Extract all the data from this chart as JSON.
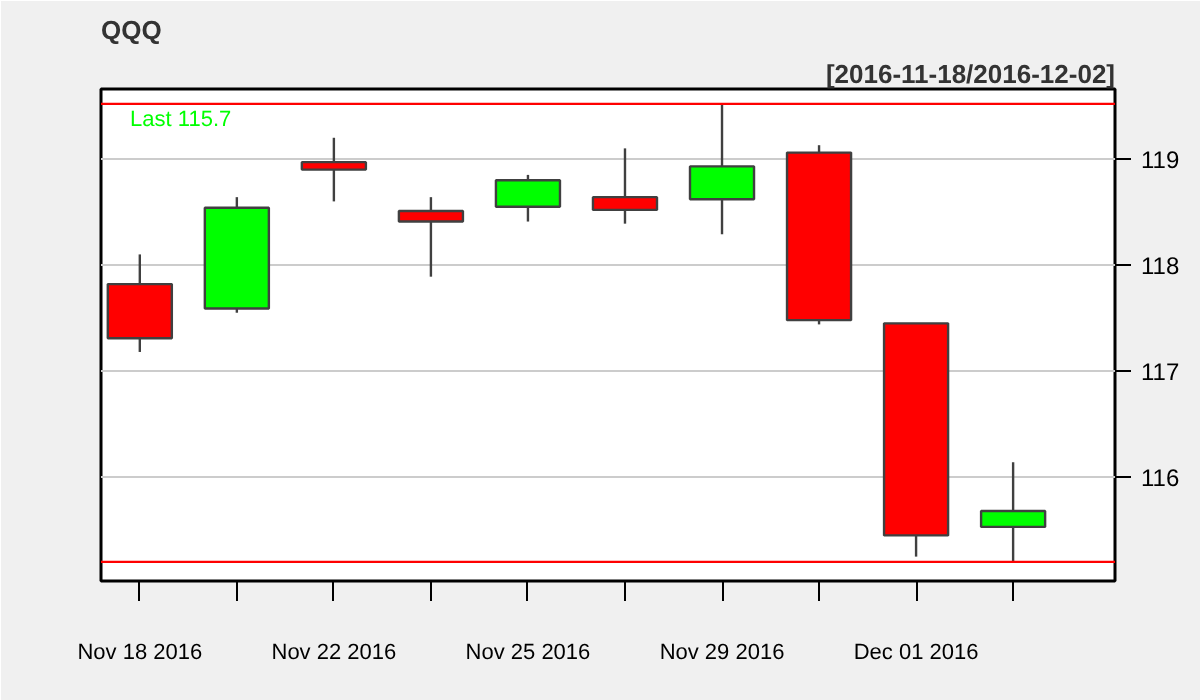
{
  "chart_data": {
    "type": "candlestick",
    "title": "QQQ",
    "subtitle": "[2016-11-18/2016-12-02]",
    "categories": [
      "Nov 18 2016",
      null,
      "Nov 22 2016",
      null,
      "Nov 25 2016",
      null,
      "Nov 29 2016",
      null,
      "Dec 01 2016",
      null
    ],
    "ohlc": [
      [
        117.82,
        118.1,
        117.18,
        117.31
      ],
      [
        117.59,
        118.64,
        117.55,
        118.54
      ],
      [
        118.97,
        119.2,
        118.6,
        118.9
      ],
      [
        118.51,
        118.64,
        117.89,
        118.41
      ],
      [
        118.55,
        118.85,
        118.41,
        118.8
      ],
      [
        118.64,
        119.1,
        118.39,
        118.52
      ],
      [
        118.62,
        119.52,
        118.29,
        118.93
      ],
      [
        119.06,
        119.13,
        117.44,
        117.48
      ],
      [
        117.45,
        117.45,
        115.25,
        115.45
      ],
      [
        115.53,
        116.14,
        115.2,
        115.68
      ]
    ],
    "colors": [
      "#ff0000",
      "#00ff00",
      "#ff0000",
      "#ff0000",
      "#00ff00",
      "#ff0000",
      "#00ff00",
      "#ff0000",
      "#ff0000",
      "#00ff00"
    ],
    "ylim": [
      115.02,
      119.66
    ],
    "yticks": [
      116,
      117,
      118,
      119
    ],
    "grid": "y",
    "ref_lines": [
      {
        "axis": "y",
        "value": 119.52,
        "color": "#ff0000"
      },
      {
        "axis": "y",
        "value": 115.2,
        "color": "#ff0000"
      }
    ],
    "annotations": [
      {
        "text": "Last 115.7",
        "y": 119.52
      }
    ]
  }
}
